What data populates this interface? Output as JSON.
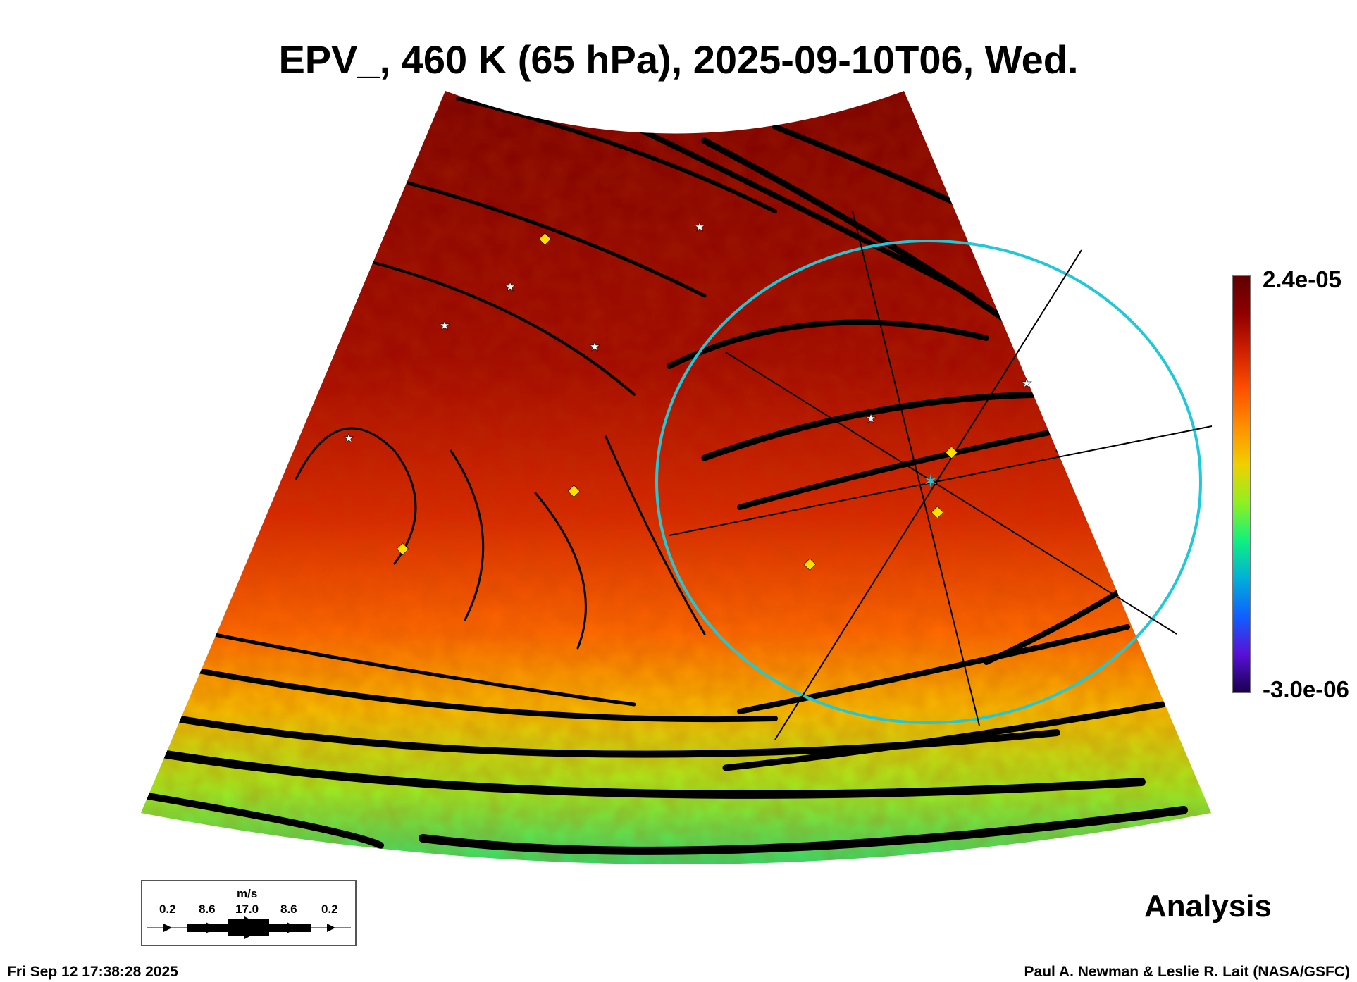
{
  "chart_data": {
    "type": "heatmap",
    "title": "EPV_, 460 K (65 hPa), 2025-09-10T06, Wed.",
    "variable": "EPV_",
    "level": "460 K (65 hPa)",
    "colorbar": {
      "min_label": "-3.0e-06",
      "max_label": "2.4e-05",
      "min": -3e-06,
      "max": 2.4e-05,
      "colors": [
        "#1a0050",
        "#5a10d8",
        "#1060ff",
        "#00b0d8",
        "#10f080",
        "#90f020",
        "#f0d000",
        "#ff9000",
        "#ff5000",
        "#d02000",
        "#900000",
        "#600000"
      ]
    },
    "overlay": "wind streamlines",
    "wind_legend": {
      "unit": "m/s",
      "values": [
        "0.2",
        "8.6",
        "17.0",
        "8.6",
        "0.2"
      ]
    },
    "label": "Analysis",
    "ring_color": "#20c8d8"
  },
  "footer": {
    "timestamp": "Fri Sep 12 17:38:28 2025",
    "credit": "Paul A. Newman & Leslie R. Lait (NASA/GSFC)"
  }
}
